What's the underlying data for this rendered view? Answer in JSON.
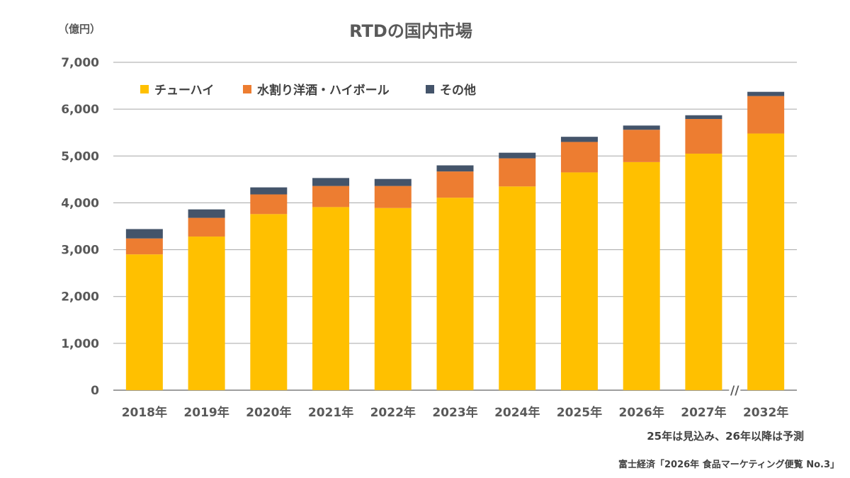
{
  "chart_data": {
    "type": "bar",
    "stacked": true,
    "title": "RTDの国内市場",
    "unit_label": "（億円）",
    "categories": [
      "2018年",
      "2019年",
      "2020年",
      "2021年",
      "2022年",
      "2023年",
      "2024年",
      "2025年",
      "2026年",
      "2027年",
      "2032年"
    ],
    "series": [
      {
        "name": "チューハイ",
        "color": "#FFC000",
        "values": [
          2900,
          3280,
          3760,
          3910,
          3890,
          4110,
          4350,
          4650,
          4870,
          5050,
          5480
        ]
      },
      {
        "name": "水割り洋酒・ハイボール",
        "color": "#ED7D31",
        "values": [
          340,
          400,
          420,
          450,
          470,
          560,
          600,
          650,
          690,
          740,
          800
        ]
      },
      {
        "name": "その他",
        "color": "#44546A",
        "values": [
          200,
          180,
          150,
          170,
          150,
          130,
          120,
          110,
          90,
          80,
          90
        ]
      }
    ],
    "ylim": [
      0,
      7000
    ],
    "yticks": [
      "0",
      "1,000",
      "2,000",
      "3,000",
      "4,000",
      "5,000",
      "6,000",
      "7,000"
    ],
    "ytick_values": [
      0,
      1000,
      2000,
      3000,
      4000,
      5000,
      6000,
      7000
    ],
    "grid": true,
    "legend_position": "top-left",
    "axis_break_symbol": "//",
    "note": "25年は見込み、26年以降は予測",
    "source": "富士経済「2026年 食品マーケティング便覧 No.3」"
  }
}
